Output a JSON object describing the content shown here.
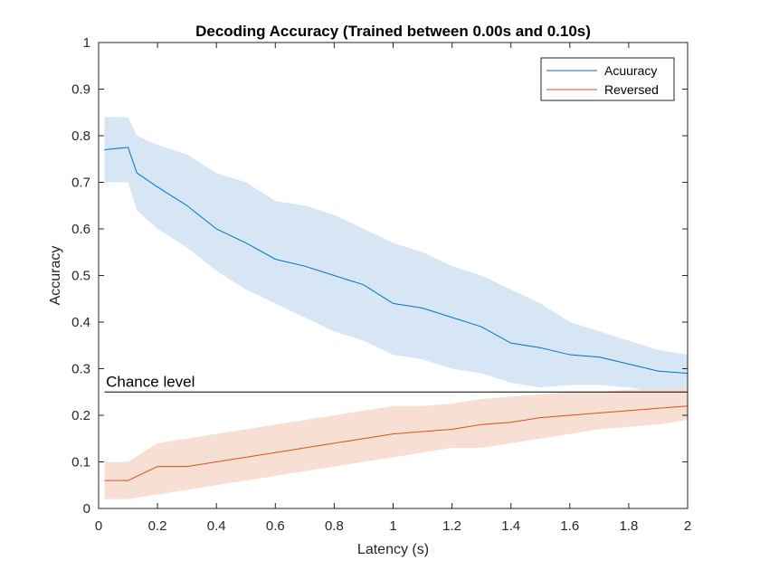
{
  "chart_data": {
    "type": "line",
    "title": "Decoding Accuracy (Trained between 0.00s and 0.10s)",
    "xlabel": "Latency (s)",
    "ylabel": "Accuracy",
    "xlim": [
      0,
      2
    ],
    "ylim": [
      0,
      1
    ],
    "x_ticks": [
      0,
      0.2,
      0.4,
      0.6,
      0.8,
      1,
      1.2,
      1.4,
      1.6,
      1.8,
      2
    ],
    "x_tick_labels": [
      "0",
      "0.2",
      "0.4",
      "0.6",
      "0.8",
      "1",
      "1.2",
      "1.4",
      "1.6",
      "1.8",
      "2"
    ],
    "y_ticks": [
      0,
      0.1,
      0.2,
      0.3,
      0.4,
      0.5,
      0.6,
      0.7,
      0.8,
      0.9,
      1
    ],
    "y_tick_labels": [
      "0",
      "0.1",
      "0.2",
      "0.3",
      "0.4",
      "0.5",
      "0.6",
      "0.7",
      "0.8",
      "0.9",
      "1"
    ],
    "grid": false,
    "legend_position": "top-right",
    "chance_level": {
      "value": 0.25,
      "label": "Chance level"
    },
    "series": [
      {
        "name": "Acuuracy",
        "color": "#0072BD",
        "band_color": "#D6E6F4",
        "x": [
          0.02,
          0.1,
          0.13,
          0.2,
          0.3,
          0.4,
          0.5,
          0.6,
          0.7,
          0.8,
          0.9,
          1.0,
          1.1,
          1.2,
          1.3,
          1.4,
          1.5,
          1.6,
          1.7,
          1.8,
          1.9,
          2.0
        ],
        "y": [
          0.77,
          0.775,
          0.72,
          0.69,
          0.65,
          0.6,
          0.57,
          0.535,
          0.52,
          0.5,
          0.48,
          0.44,
          0.43,
          0.41,
          0.39,
          0.355,
          0.345,
          0.33,
          0.325,
          0.31,
          0.295,
          0.29
        ],
        "upper": [
          0.84,
          0.84,
          0.8,
          0.78,
          0.76,
          0.72,
          0.7,
          0.66,
          0.65,
          0.63,
          0.6,
          0.57,
          0.55,
          0.52,
          0.5,
          0.47,
          0.44,
          0.4,
          0.38,
          0.36,
          0.34,
          0.33
        ],
        "lower": [
          0.7,
          0.7,
          0.64,
          0.6,
          0.56,
          0.51,
          0.47,
          0.44,
          0.41,
          0.38,
          0.36,
          0.33,
          0.32,
          0.3,
          0.29,
          0.27,
          0.26,
          0.265,
          0.265,
          0.26,
          0.25,
          0.24
        ]
      },
      {
        "name": "Reversed",
        "color": "#D95319",
        "band_color": "#F8DFD4",
        "x": [
          0.02,
          0.06,
          0.1,
          0.2,
          0.3,
          0.4,
          0.5,
          0.6,
          0.7,
          0.8,
          0.9,
          1.0,
          1.1,
          1.2,
          1.3,
          1.4,
          1.5,
          1.6,
          1.7,
          1.8,
          1.9,
          2.0
        ],
        "y": [
          0.06,
          0.06,
          0.06,
          0.09,
          0.09,
          0.1,
          0.11,
          0.12,
          0.13,
          0.14,
          0.15,
          0.16,
          0.165,
          0.17,
          0.18,
          0.185,
          0.195,
          0.2,
          0.205,
          0.21,
          0.215,
          0.22
        ],
        "upper": [
          0.1,
          0.1,
          0.1,
          0.14,
          0.15,
          0.16,
          0.17,
          0.18,
          0.19,
          0.2,
          0.21,
          0.22,
          0.22,
          0.225,
          0.235,
          0.24,
          0.245,
          0.25,
          0.25,
          0.255,
          0.255,
          0.26
        ],
        "lower": [
          0.02,
          0.02,
          0.02,
          0.03,
          0.04,
          0.05,
          0.06,
          0.07,
          0.08,
          0.09,
          0.1,
          0.11,
          0.12,
          0.13,
          0.13,
          0.14,
          0.15,
          0.16,
          0.17,
          0.175,
          0.18,
          0.19
        ]
      }
    ]
  }
}
